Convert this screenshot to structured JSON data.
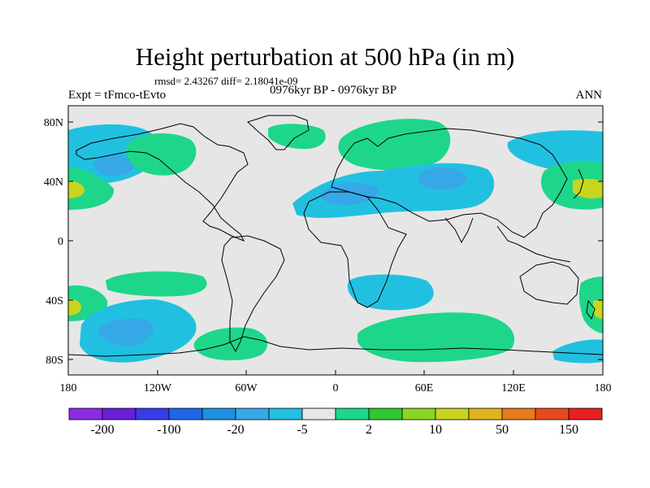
{
  "title": "Height perturbation at 500 hPa (in m)",
  "stats": "rmsd= 2.43267 diff= 2.18041e-09",
  "left_label": "Expt = tFmco-tEvto",
  "center_label": "0976kyr BP - 0976kyr BP",
  "right_label": "ANN",
  "y_ticks": [
    "80N",
    "40N",
    "0",
    "40S",
    "80S"
  ],
  "x_ticks": [
    "180",
    "120W",
    "60W",
    "0",
    "60E",
    "120E",
    "180"
  ],
  "colorbar": {
    "colors": [
      "#8a2be2",
      "#6a1fd8",
      "#3a3ce8",
      "#1f66e8",
      "#1e90e0",
      "#36a8e8",
      "#22c0e0",
      "#e6e6e6",
      "#1ed68a",
      "#2ec832",
      "#8cd424",
      "#c8d41e",
      "#e0b41e",
      "#e87a1e",
      "#e84a1e",
      "#e82020"
    ],
    "labels": [
      "-200",
      "-100",
      "-20",
      "-5",
      "2",
      "10",
      "50",
      "150"
    ]
  },
  "colors": {
    "land_fill": "#e6e6e6",
    "coast": "#000000",
    "blue_light": "#22c0e0",
    "blue_mid": "#36a8e8",
    "blue_dark": "#1e90e0",
    "green": "#1ed68a",
    "green_dark": "#2ec832",
    "yellow": "#c8d41e"
  }
}
